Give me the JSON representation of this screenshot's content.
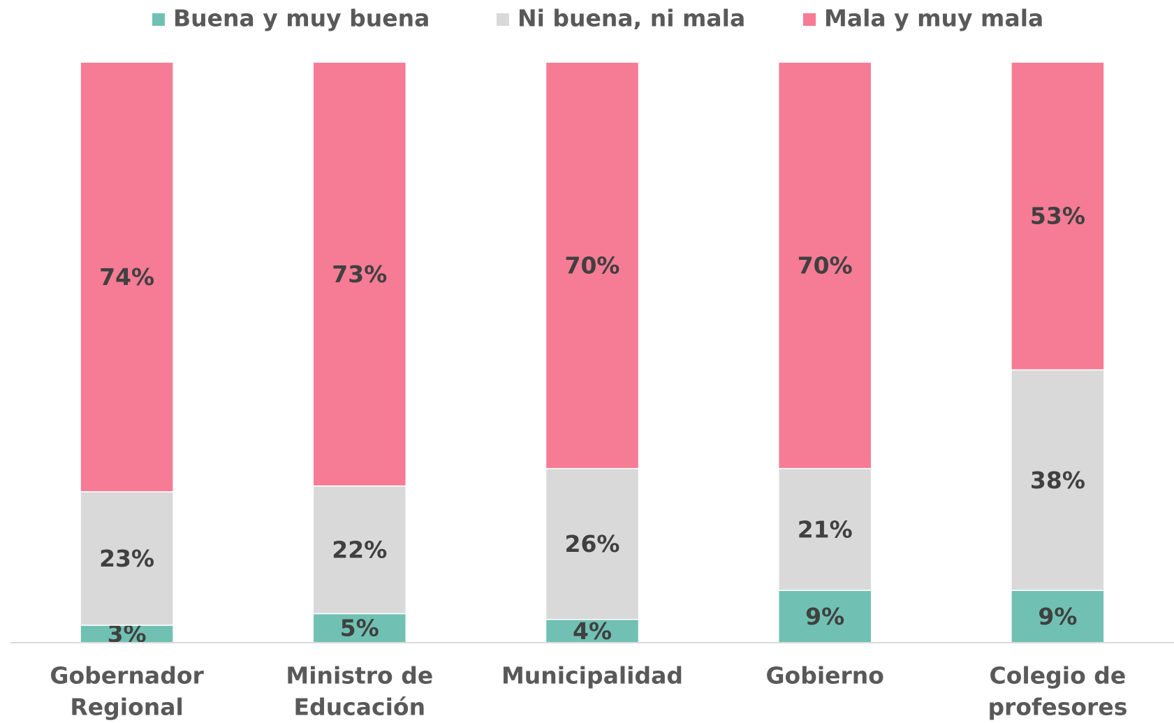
{
  "chart_data": {
    "type": "stacked_bar",
    "categories": [
      [
        "Gobernador",
        "Regional"
      ],
      [
        "Ministro de",
        "Educación"
      ],
      [
        "Municipalidad"
      ],
      [
        "Gobierno"
      ],
      [
        "Colegio de",
        "profesores"
      ]
    ],
    "series": [
      {
        "name": "Buena y muy buena",
        "color": "#70c1b3",
        "values": [
          3,
          5,
          4,
          9,
          9
        ],
        "value_labels": [
          "3%",
          "5%",
          "4%",
          "9%",
          "9%"
        ]
      },
      {
        "name": "Ni buena, ni mala",
        "color": "#d9d9d9",
        "values": [
          23,
          22,
          26,
          21,
          38
        ],
        "value_labels": [
          "23%",
          "22%",
          "26%",
          "21%",
          "38%"
        ]
      },
      {
        "name": "Mala y muy mala",
        "color": "#f67b95",
        "values": [
          74,
          73,
          70,
          70,
          53
        ],
        "value_labels": [
          "74%",
          "73%",
          "70%",
          "70%",
          "53%"
        ]
      }
    ]
  }
}
